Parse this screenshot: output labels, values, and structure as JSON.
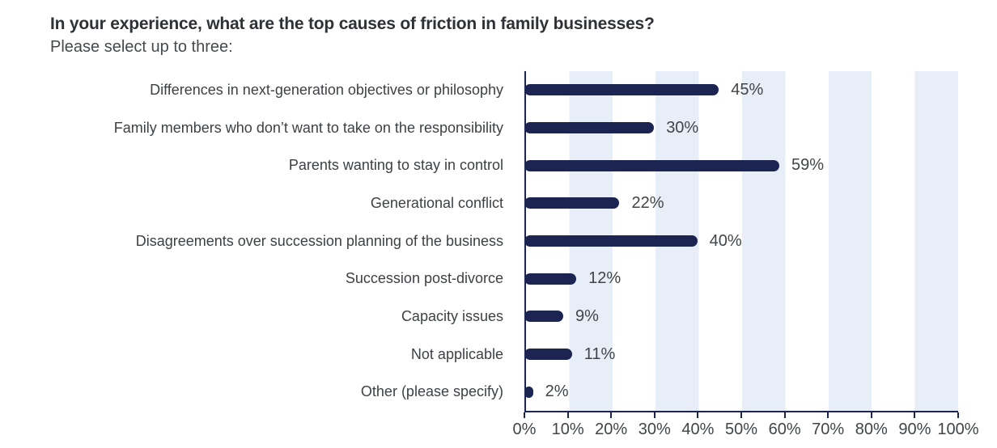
{
  "header": {
    "title": "In your experience, what are the top causes of friction in family businesses?",
    "subtitle": "Please select up to three:"
  },
  "chart_data": {
    "type": "bar",
    "orientation": "horizontal",
    "title": "In your experience, what are the top causes of friction in family businesses?",
    "subtitle": "Please select up to three:",
    "categories": [
      "Differences in next-generation objectives or philosophy",
      "Family members who don’t want to take on the responsibility",
      "Parents wanting to stay in control",
      "Generational conflict",
      "Disagreements over succession planning of the business",
      "Succession post-divorce",
      "Capacity issues",
      "Not applicable",
      "Other (please specify)"
    ],
    "values": [
      45,
      30,
      59,
      22,
      40,
      12,
      9,
      11,
      2
    ],
    "data_labels": [
      "45%",
      "30%",
      "59%",
      "22%",
      "40%",
      "12%",
      "9%",
      "11%",
      "2%"
    ],
    "x_tick_labels": [
      "0%",
      "10%",
      "20%",
      "30%",
      "40%",
      "50%",
      "60%",
      "70%",
      "80%",
      "90%",
      "100%"
    ],
    "xlabel": "",
    "ylabel": "",
    "xlim": [
      0,
      100
    ],
    "legend": "none",
    "grid": "alternating light-blue vertical bands every 10%",
    "colors": {
      "bar": "#1c2451",
      "band": "#e8eef7",
      "axis": "#1c2451",
      "category_text": "#3d4145",
      "value_text": "#414549",
      "title_text": "#2e3135"
    }
  }
}
